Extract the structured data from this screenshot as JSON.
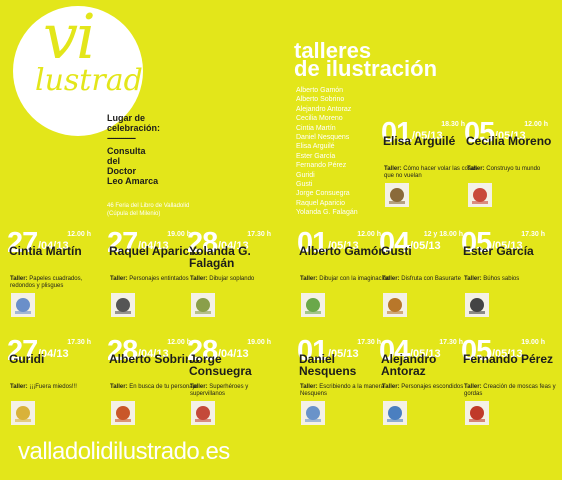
{
  "logo": {
    "line1": "vi",
    "line2": "lustrado"
  },
  "header": {
    "title_line1": "talleres",
    "title_line2": "de ilustración"
  },
  "illustrators": [
    "Alberto Gamón",
    "Alberto Sobrino",
    "Alejandro Antoraz",
    "Cecilia Moreno",
    "Cintia Martín",
    "Daniel Nesquens",
    "Elisa Arguilé",
    "Ester García",
    "Fernando Pérez",
    "Guridi",
    "Gusti",
    "Jorge Consuegra",
    "Raquel Aparicio",
    "Yolanda G. Falagán"
  ],
  "venue": {
    "label_line1": "Lugar de",
    "label_line2": "celebración:",
    "dashes": "--------------",
    "place": [
      "Consulta",
      "del",
      "Doctor",
      "Leo Amarca"
    ],
    "address_line1": "46 Feria del Libro de Valladolid",
    "address_line2": "(Cúpula del Milenio)"
  },
  "website": "valladolidilustrado.es",
  "workshop_prefix": "Taller:",
  "colors": {
    "background": "#e3e61a",
    "text": "#1d1d1b",
    "accent": "#ffffff"
  },
  "workshops": [
    {
      "day": "01",
      "month": "/05/13",
      "time": "18.30 h",
      "name": "Elisa Arguilé",
      "title": "Cómo hacer volar las cosas que no vuelan",
      "thumb": "bird-illustration"
    },
    {
      "day": "05",
      "month": "/05/13",
      "time": "12.00 h",
      "name": "Cecilia Moreno",
      "title": "Construyo tu mundo",
      "thumb": "house-illustration"
    },
    {
      "day": "27",
      "month": "/04/13",
      "time": "12.00 h",
      "name": "Cintia Martín",
      "title": "Papeles cuadrados, redondos y plisgues",
      "thumb": "paper-illustration"
    },
    {
      "day": "27",
      "month": "/04/13",
      "time": "19.00 h",
      "name": "Raquel Aparicio",
      "title": "Personajes entintados",
      "thumb": "ink-character-illustration"
    },
    {
      "day": "28",
      "month": "/04/13",
      "time": "17.30 h",
      "name": "Yolanda G. Falagán",
      "title": "Dibujar soplando",
      "thumb": "blown-ink-illustration"
    },
    {
      "day": "01",
      "month": "/05/13",
      "time": "12.00 h",
      "name": "Alberto Gamón",
      "title": "Dibujar con la imaginación",
      "thumb": "imagination-illustration"
    },
    {
      "day": "04",
      "month": "/05/13",
      "time": "12 y 18.00 h",
      "name": "Gusti",
      "title": "Disfruta con Basurarte",
      "thumb": "basurarte-illustration"
    },
    {
      "day": "05",
      "month": "/05/13",
      "time": "17.30 h",
      "name": "Ester García",
      "title": "Búhos sabios",
      "thumb": "owl-illustration"
    },
    {
      "day": "27",
      "month": "/04/13",
      "time": "17.30 h",
      "name": "Guridi",
      "title": "¡¡¡Fuera miedos!!!",
      "thumb": "fear-illustration"
    },
    {
      "day": "28",
      "month": "/04/13",
      "time": "12.00 h",
      "name": "Alberto Sobrino",
      "title": "En busca de tu personaje",
      "thumb": "character-illustration"
    },
    {
      "day": "28",
      "month": "/04/13",
      "time": "19.00 h",
      "name": "Jorge Consuegra",
      "title": "Superhéroes y supervillanos",
      "thumb": "superhero-illustration"
    },
    {
      "day": "01",
      "month": "/05/13",
      "time": "17.30 h",
      "name": "Daniel Nesquens",
      "title": "Escribiendo a la manera Nesquens",
      "thumb": "writing-illustration"
    },
    {
      "day": "04",
      "month": "/05/13",
      "time": "17.30 h",
      "name": "Alejandro Antoraz",
      "title": "Personajes escondidos",
      "thumb": "hidden-characters-illustration"
    },
    {
      "day": "05",
      "month": "/05/13",
      "time": "19.00 h",
      "name": "Fernando Pérez",
      "title": "Creación de moscas feas y gordas",
      "thumb": "fly-illustration"
    }
  ]
}
